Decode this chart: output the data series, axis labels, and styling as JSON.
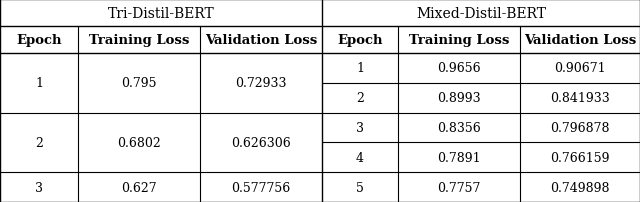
{
  "tri_header": "Tri-Distil-BERT",
  "mixed_header": "Mixed-Distil-BERT",
  "col_headers": [
    "Epoch",
    "Training Loss",
    "Validation Loss",
    "Epoch",
    "Training Loss",
    "Validation Loss"
  ],
  "tri_rows": [
    [
      "1",
      "0.795",
      "0.72933"
    ],
    [
      "2",
      "0.6802",
      "0.626306"
    ],
    [
      "3",
      "0.627",
      "0.577756"
    ]
  ],
  "mixed_rows": [
    [
      "1",
      "0.9656",
      "0.90671"
    ],
    [
      "2",
      "0.8993",
      "0.841933"
    ],
    [
      "3",
      "0.8356",
      "0.796878"
    ],
    [
      "4",
      "0.7891",
      "0.766159"
    ],
    [
      "5",
      "0.7757",
      "0.749898"
    ]
  ],
  "bg_color": "#ffffff",
  "line_color": "#000000",
  "font_size": 9.0,
  "header_font_size": 10.0,
  "col_header_font_size": 9.5,
  "cols": [
    0,
    78,
    200,
    322,
    398,
    520,
    640
  ],
  "gh": 27,
  "ch": 27
}
